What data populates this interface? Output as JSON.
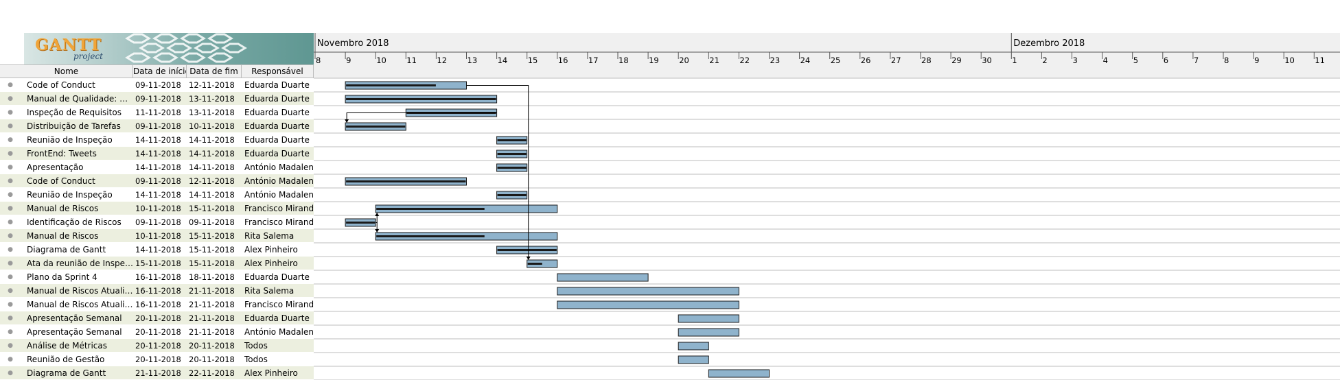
{
  "logo": {
    "brand": "GANTT",
    "sub": "project"
  },
  "columns": {
    "name": "Nome",
    "start": "Data de início",
    "end": "Data de fim",
    "resp": "Responsável"
  },
  "timeline": {
    "months": [
      {
        "label": "Novembro 2018",
        "start_day": 8
      },
      {
        "label": "Dezembro 2018",
        "start_day": 31
      }
    ],
    "days": [
      "8",
      "9",
      "10",
      "11",
      "12",
      "13",
      "14",
      "15",
      "16",
      "17",
      "18",
      "19",
      "20",
      "21",
      "22",
      "23",
      "24",
      "25",
      "26",
      "27",
      "28",
      "29",
      "30",
      "1",
      "2",
      "3",
      "4",
      "5",
      "6",
      "7",
      "8",
      "9",
      "10",
      "11"
    ]
  },
  "tasks": [
    {
      "name": "Code of Conduct",
      "start": "09-11-2018",
      "end": "12-11-2018",
      "resp": "Eduarda Duarte",
      "progress": 0.75
    },
    {
      "name": "Manual de Qualidade: Gest...",
      "start": "09-11-2018",
      "end": "13-11-2018",
      "resp": "Eduarda Duarte",
      "progress": 1.0
    },
    {
      "name": "Inspeção de Requisitos",
      "start": "11-11-2018",
      "end": "13-11-2018",
      "resp": "Eduarda Duarte",
      "progress": 1.0
    },
    {
      "name": "Distribuição de Tarefas",
      "start": "09-11-2018",
      "end": "10-11-2018",
      "resp": "Eduarda Duarte",
      "progress": 1.0
    },
    {
      "name": "Reunião de Inspeção",
      "start": "14-11-2018",
      "end": "14-11-2018",
      "resp": "Eduarda Duarte",
      "progress": 1.0
    },
    {
      "name": "FrontEnd: Tweets",
      "start": "14-11-2018",
      "end": "14-11-2018",
      "resp": "Eduarda Duarte",
      "progress": 1.0
    },
    {
      "name": "Apresentação",
      "start": "14-11-2018",
      "end": "14-11-2018",
      "resp": "António Madaleno",
      "progress": 1.0
    },
    {
      "name": "Code of Conduct",
      "start": "09-11-2018",
      "end": "12-11-2018",
      "resp": "António Madaleno",
      "progress": 1.0
    },
    {
      "name": "Reunião de Inspeção",
      "start": "14-11-2018",
      "end": "14-11-2018",
      "resp": "António Madaleno",
      "progress": 1.0
    },
    {
      "name": "Manual de Riscos",
      "start": "10-11-2018",
      "end": "15-11-2018",
      "resp": "Francisco Miranda",
      "progress": 0.6
    },
    {
      "name": "Identificação de Riscos",
      "start": "09-11-2018",
      "end": "09-11-2018",
      "resp": "Francisco Miranda",
      "progress": 1.0
    },
    {
      "name": "Manual de Riscos",
      "start": "10-11-2018",
      "end": "15-11-2018",
      "resp": "Rita Salema",
      "progress": 0.6
    },
    {
      "name": "Diagrama de Gantt",
      "start": "14-11-2018",
      "end": "15-11-2018",
      "resp": "Alex Pinheiro",
      "progress": 1.0
    },
    {
      "name": "Ata da reunião de Inspeção",
      "start": "15-11-2018",
      "end": "15-11-2018",
      "resp": "Alex Pinheiro",
      "progress": 0.5
    },
    {
      "name": "Plano da Sprint 4",
      "start": "16-11-2018",
      "end": "18-11-2018",
      "resp": "Eduarda Duarte",
      "progress": 0
    },
    {
      "name": "Manual de Riscos Atualizad...",
      "start": "16-11-2018",
      "end": "21-11-2018",
      "resp": "Rita Salema",
      "progress": 0
    },
    {
      "name": "Manual de Riscos Atualizado",
      "start": "16-11-2018",
      "end": "21-11-2018",
      "resp": "Francisco Miranda",
      "progress": 0
    },
    {
      "name": "Apresentação Semanal",
      "start": "20-11-2018",
      "end": "21-11-2018",
      "resp": "Eduarda Duarte",
      "progress": 0
    },
    {
      "name": "Apresentação Semanal",
      "start": "20-11-2018",
      "end": "21-11-2018",
      "resp": "António Madaleno",
      "progress": 0
    },
    {
      "name": "Análise de Métricas",
      "start": "20-11-2018",
      "end": "20-11-2018",
      "resp": "Todos",
      "progress": 0
    },
    {
      "name": "Reunião de Gestão",
      "start": "20-11-2018",
      "end": "20-11-2018",
      "resp": "Todos",
      "progress": 0
    },
    {
      "name": "Diagrama de Gantt",
      "start": "21-11-2018",
      "end": "22-11-2018",
      "resp": "Alex Pinheiro",
      "progress": 0
    }
  ],
  "dependencies": [
    {
      "from": 0,
      "to": 13
    },
    {
      "from": 2,
      "to": 3
    },
    {
      "from": 10,
      "to": 9
    },
    {
      "from": 10,
      "to": 11
    }
  ],
  "colors": {
    "bar": "#8fb3cc",
    "bar_border": "#1a1a1a",
    "progress": "#1a1a1a",
    "header_bg": "#f0f0f0",
    "alt_row": "#ecefdf",
    "grid": "#bcbcbc"
  }
}
